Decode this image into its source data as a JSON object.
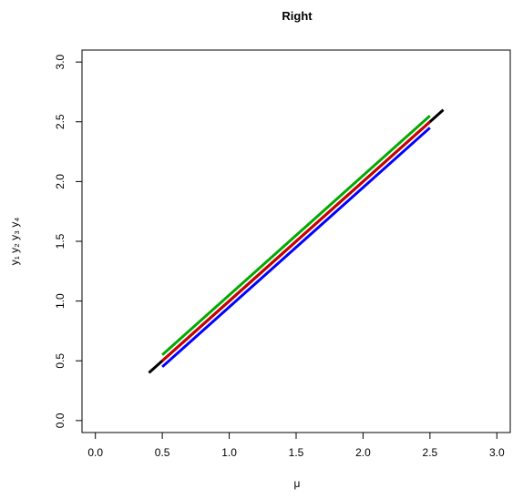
{
  "chart_data": {
    "type": "line",
    "title": "Right",
    "xlabel": "μ",
    "ylabel": "y₁ y₂ y₃ y₄",
    "xlim": [
      -0.1,
      3.1
    ],
    "ylim": [
      -0.1,
      3.1
    ],
    "x_ticks": [
      "0.0",
      "0.5",
      "1.0",
      "1.5",
      "2.0",
      "2.5",
      "3.0"
    ],
    "y_ticks": [
      "0.0",
      "0.5",
      "1.0",
      "1.5",
      "2.0",
      "2.5",
      "3.0"
    ],
    "grid": false,
    "series": [
      {
        "color": "#000000",
        "x": [
          0.4,
          2.6
        ],
        "y": [
          0.4,
          2.6
        ]
      },
      {
        "color": "#cc0000",
        "x": [
          0.5,
          2.5
        ],
        "y": [
          0.5,
          2.5
        ]
      },
      {
        "color": "#00aa00",
        "x": [
          0.5,
          2.5
        ],
        "y": [
          0.55,
          2.55
        ]
      },
      {
        "color": "#0000ff",
        "x": [
          0.5,
          2.5
        ],
        "y": [
          0.45,
          2.45
        ]
      }
    ]
  }
}
